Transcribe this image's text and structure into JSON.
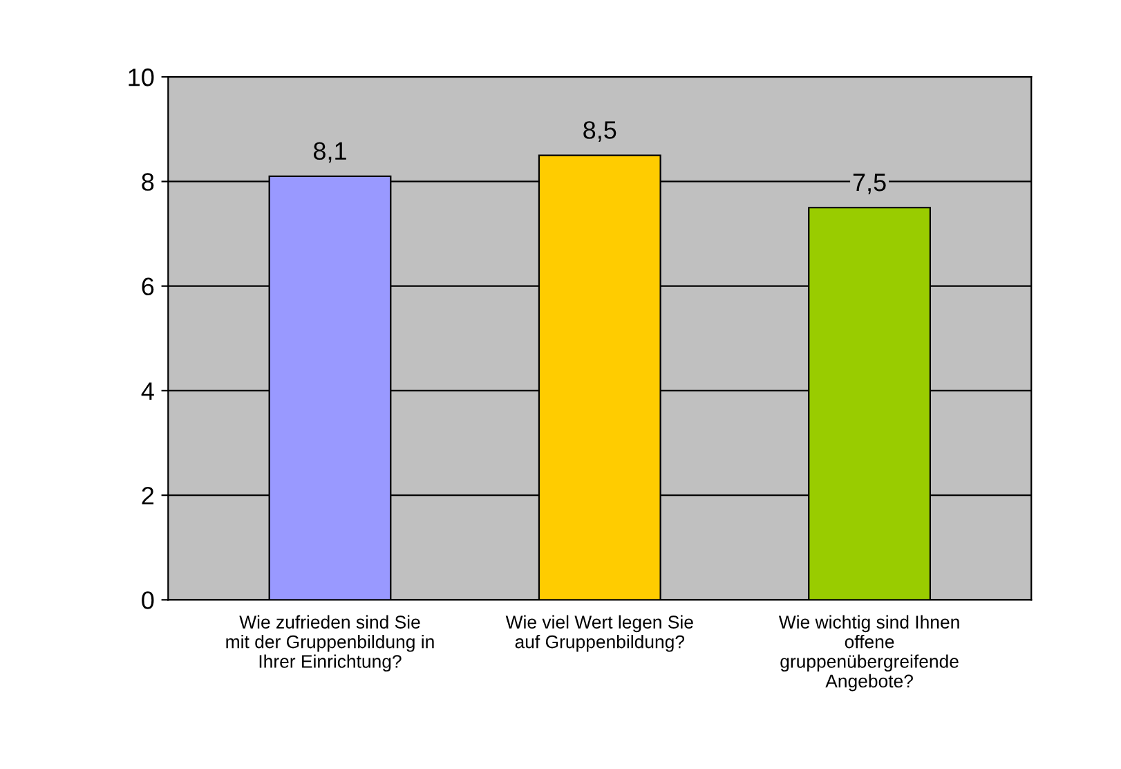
{
  "chart_data": {
    "type": "bar",
    "categories": [
      "Wie zufrieden sind Sie\nmit der Gruppenbildung in\nIhrer Einrichtung?",
      "Wie viel Wert legen Sie\nauf Gruppenbildung?",
      "Wie wichtig sind Ihnen\noffene\ngruppenübergreifende\nAngebote?"
    ],
    "values": [
      8.1,
      8.5,
      7.5
    ],
    "colors": [
      "#9999ff",
      "#ffcc00",
      "#99cc00"
    ],
    "value_labels": [
      "8,1",
      "8,5",
      "7,5"
    ],
    "ylim": [
      0,
      10
    ],
    "yticks": [
      0,
      2,
      4,
      6,
      8,
      10
    ],
    "grid": "y"
  }
}
